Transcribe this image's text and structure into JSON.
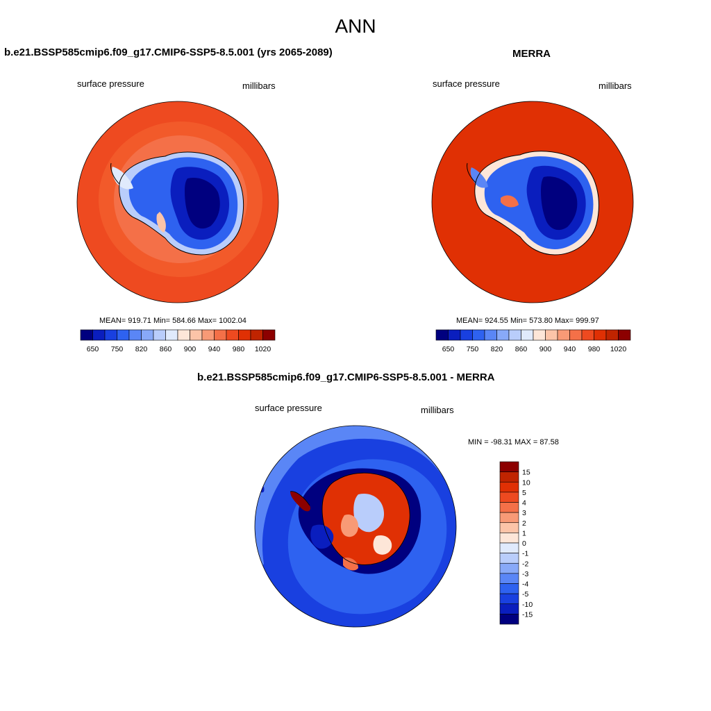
{
  "page_title": "ANN",
  "panels": [
    {
      "title": "b.e21.BSSP585cmip6.f09_g17.CMIP6-SSP5-8.5.001 (yrs 2065-2089)",
      "left_label": "surface pressure",
      "right_label": "millibars",
      "stats": "MEAN= 919.71  Min= 584.66  Max= 1002.04"
    },
    {
      "title": "MERRA",
      "left_label": "surface pressure",
      "right_label": "millibars",
      "stats": "MEAN= 924.55  Min= 573.80  Max= 999.97"
    },
    {
      "title": "b.e21.BSSP585cmip6.f09_g17.CMIP6-SSP5-8.5.001 - MERRA",
      "left_label": "surface pressure",
      "right_label": "millibars",
      "stats": "MIN = -98.31 MAX =  87.58"
    }
  ],
  "colorbar_abs": {
    "colors": [
      "#00007f",
      "#0a1ebe",
      "#1940e0",
      "#2e62f0",
      "#5a86f6",
      "#88a9f8",
      "#b9cdfb",
      "#e0eafc",
      "#fde6d8",
      "#fcc4a8",
      "#f89a76",
      "#f47048",
      "#ee4a20",
      "#e03004",
      "#c02400",
      "#8c0000"
    ],
    "tick_labels": [
      "650",
      "750",
      "820",
      "860",
      "900",
      "940",
      "980",
      "1020"
    ]
  },
  "colorbar_diff": {
    "colors": [
      "#00007f",
      "#0a1ebe",
      "#1940e0",
      "#2e62f0",
      "#5a86f6",
      "#88a9f8",
      "#b9cdfb",
      "#e0eafc",
      "#fde6d8",
      "#fcc4a8",
      "#f89a76",
      "#f47048",
      "#ee4a20",
      "#e03004",
      "#c02400",
      "#8c0000"
    ],
    "tick_labels": [
      "-15",
      "-10",
      "-5",
      "-4",
      "-3",
      "-2",
      "-1",
      "0",
      "1",
      "2",
      "3",
      "4",
      "5",
      "10",
      "15"
    ]
  }
}
